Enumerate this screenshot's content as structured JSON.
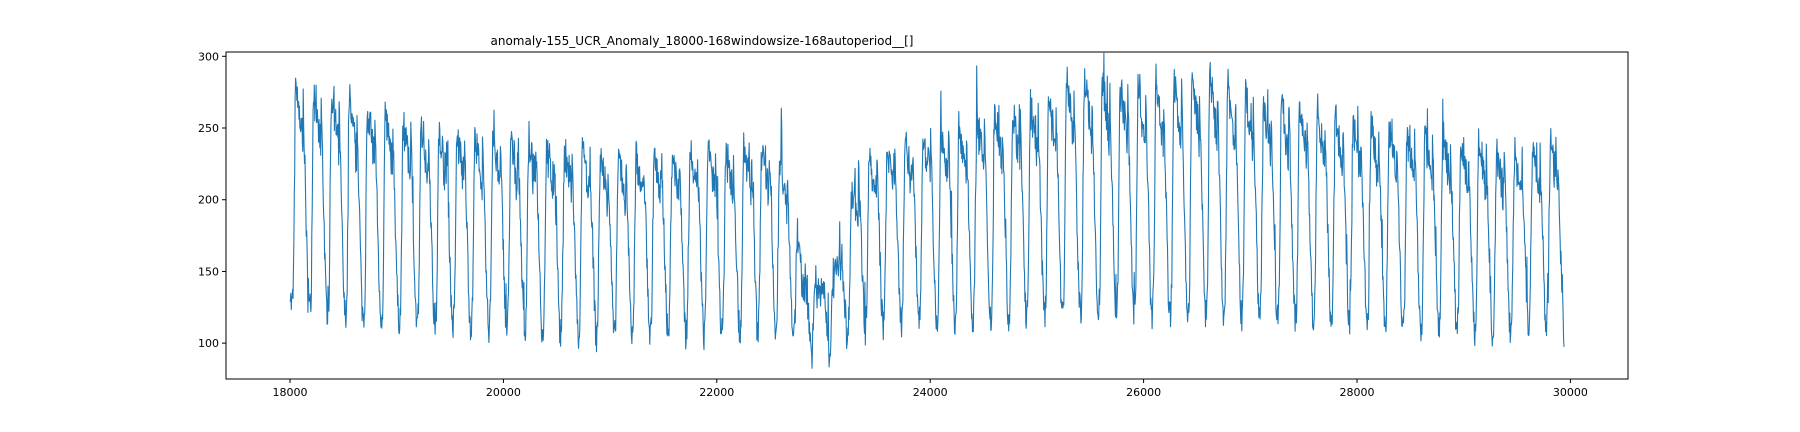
{
  "chart_data": {
    "type": "line",
    "title": "anomaly-155_UCR_Anomaly_18000-168windowsize-168autoperiod__[]",
    "xlabel": "",
    "ylabel": "",
    "xlim": [
      17400,
      30540
    ],
    "ylim": [
      75,
      303
    ],
    "x_ticks": [
      18000,
      20000,
      22000,
      24000,
      26000,
      28000,
      30000
    ],
    "x_tick_labels": [
      "18000",
      "20000",
      "22000",
      "24000",
      "26000",
      "28000",
      "30000"
    ],
    "y_ticks": [
      100,
      150,
      200,
      250,
      300
    ],
    "y_tick_labels": [
      "100",
      "150",
      "200",
      "250",
      "300"
    ],
    "grid": false,
    "legend": "none",
    "line_color": "#1f77b4",
    "series": [
      {
        "x_start": 18000,
        "x_end": 29940,
        "period": 168,
        "envelope": {
          "x": [
            18000,
            18050,
            18500,
            19000,
            19500,
            20000,
            20500,
            21000,
            21500,
            22000,
            22500,
            22700,
            22800,
            22950,
            23100,
            23300,
            23500,
            24000,
            24500,
            25000,
            25300,
            25600,
            26000,
            26300,
            26600,
            27000,
            27500,
            28000,
            28500,
            29000,
            29500,
            29880,
            29940
          ],
          "peak": [
            180,
            282,
            272,
            258,
            247,
            242,
            238,
            230,
            232,
            236,
            238,
            222,
            150,
            140,
            148,
            215,
            235,
            247,
            258,
            268,
            282,
            283,
            281,
            283,
            287,
            274,
            266,
            256,
            248,
            242,
            232,
            242,
            165
          ],
          "base": [
            140,
            133,
            130,
            127,
            125,
            125,
            124,
            124,
            125,
            125,
            127,
            120,
            112,
            105,
            110,
            125,
            128,
            130,
            132,
            135,
            136,
            136,
            136,
            136,
            136,
            134,
            132,
            130,
            128,
            127,
            126,
            127,
            135
          ],
          "low": [
            125,
            126,
            120,
            116,
            112,
            108,
            103,
            100,
            102,
            104,
            106,
            100,
            95,
            86,
            92,
            103,
            110,
            113,
            116,
            118,
            120,
            120,
            118,
            118,
            118,
            116,
            114,
            112,
            108,
            106,
            104,
            104,
            100
          ]
        }
      }
    ]
  }
}
